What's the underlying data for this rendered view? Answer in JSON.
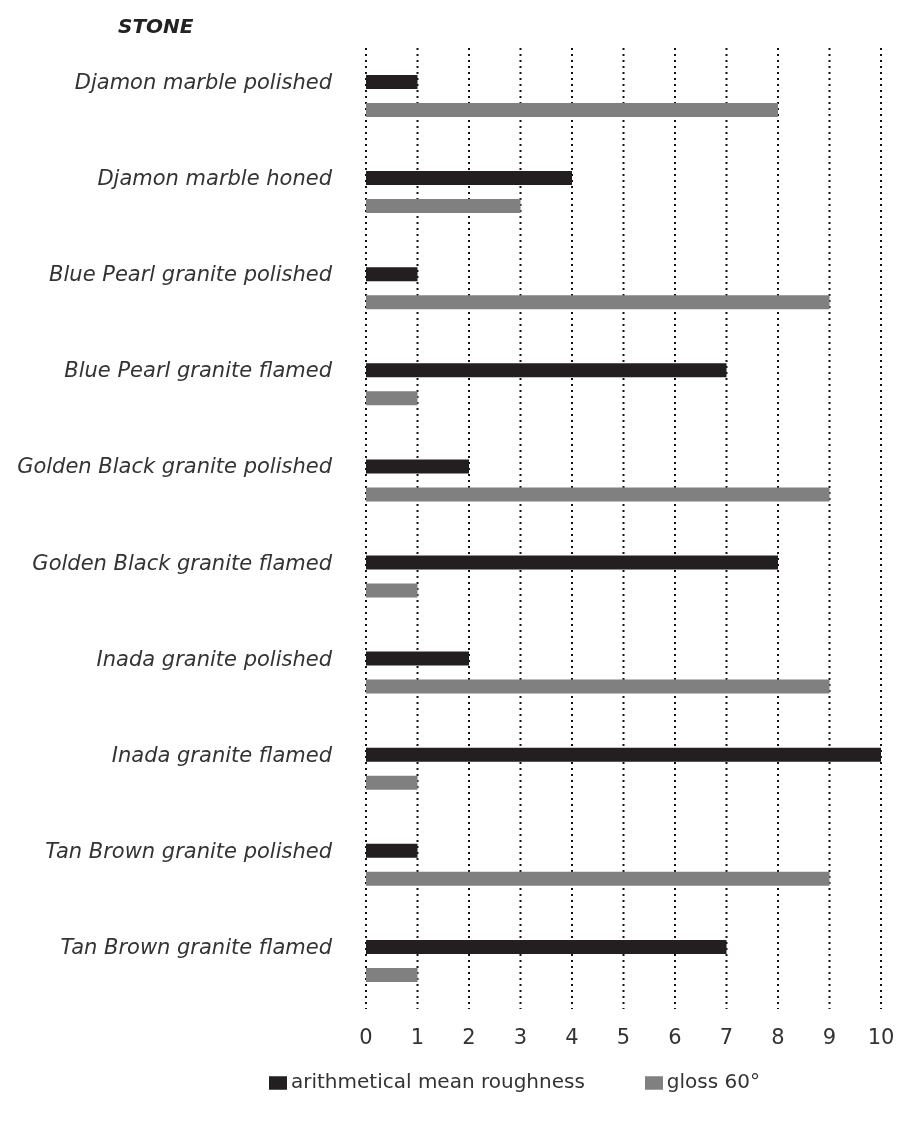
{
  "chart_data": {
    "type": "bar",
    "orientation": "horizontal",
    "ylabel": "STONE",
    "categories": [
      "Djamon marble polished",
      "Djamon marble honed",
      "Blue Pearl granite polished",
      "Blue Pearl granite flamed",
      "Golden Black granite polished",
      "Golden Black granite flamed",
      "Inada granite polished",
      "Inada granite flamed",
      "Tan Brown granite polished",
      "Tan Brown granite flamed"
    ],
    "series": [
      {
        "name": "arithmetical mean roughness",
        "color": "#231f20",
        "values": [
          1,
          4,
          1,
          7,
          2,
          8,
          2,
          10,
          1,
          7
        ]
      },
      {
        "name": "gloss 60°",
        "color": "#808080",
        "values": [
          8,
          3,
          9,
          1,
          9,
          1,
          9,
          1,
          9,
          1
        ]
      }
    ],
    "xlim": [
      0,
      10
    ],
    "xticks": [
      0,
      1,
      2,
      3,
      4,
      5,
      6,
      7,
      8,
      9,
      10
    ],
    "grid": "x",
    "legend": "bottom"
  }
}
